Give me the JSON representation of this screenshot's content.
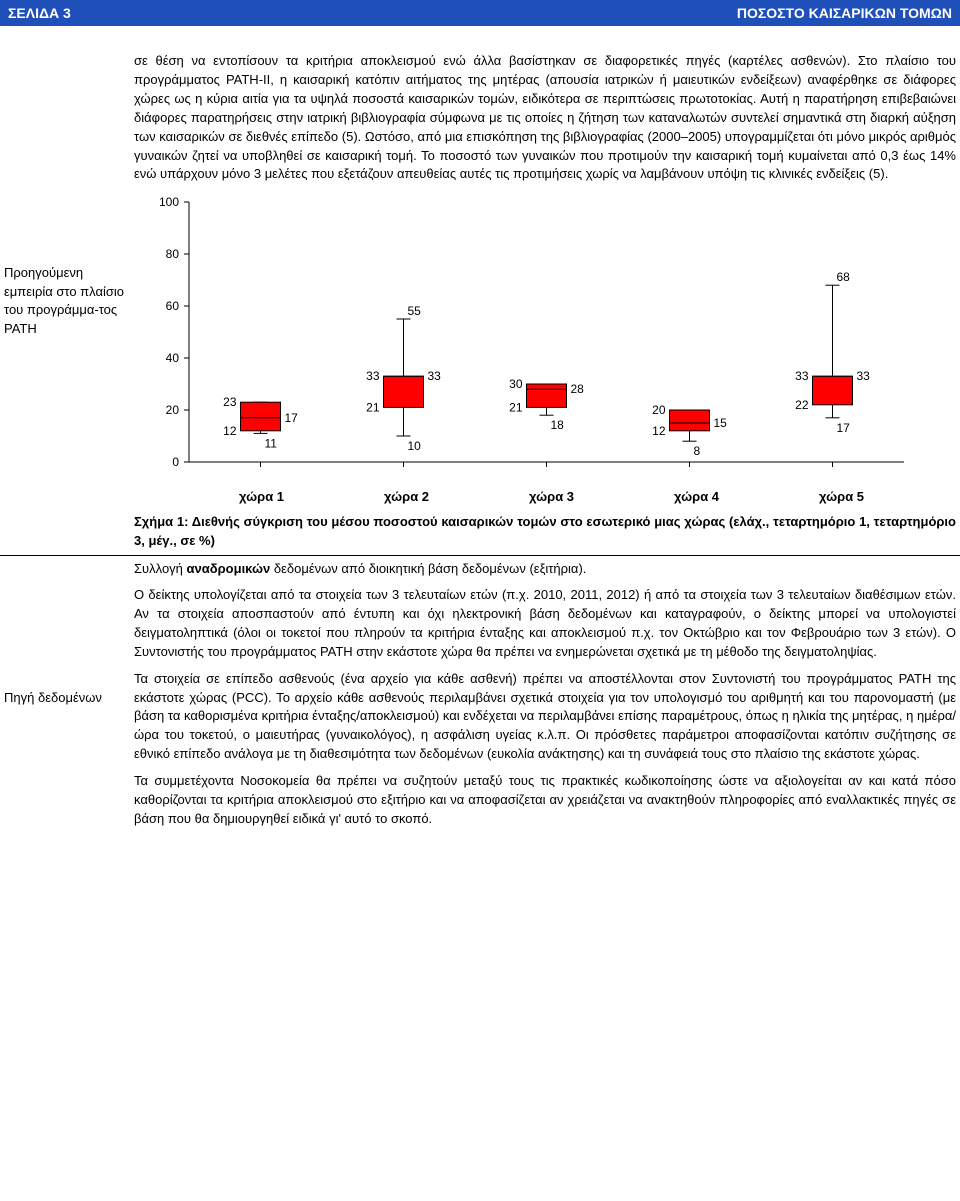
{
  "header": {
    "left": "ΣΕΛΙΔΑ 3",
    "right": "ΠΟΣΟΣΤΟ ΚΑΙΣΑΡΙΚΩΝ ΤΟΜΩΝ"
  },
  "row1": {
    "label": "Προηγούμενη εμπειρία στο πλαίσιο του προγράμμα-τος PATH",
    "text": "σε θέση να εντοπίσουν τα κριτήρια αποκλεισμού ενώ άλλα βασίστηκαν σε διαφορετικές πηγές (καρτέλες ασθενών). Στο πλαίσιο του προγράμματος PATH-II, η καισαρική κατόπιν αιτήματος της μητέρας (απουσία ιατρικών ή μαιευτικών ενδείξεων) αναφέρθηκε σε διάφορες χώρες ως η κύρια αιτία για τα υψηλά ποσοστά καισαρικών τομών, ειδικότερα σε περιπτώσεις πρωτοτοκίας. Αυτή η παρατήρηση επιβεβαιώνει διάφορες παρατηρήσεις στην ιατρική βιβλιογραφία σύμφωνα με τις οποίες η ζήτηση των καταναλωτών συντελεί σημαντικά στη διαρκή αύξηση των καισαρικών σε διεθνές επίπεδο (5). Ωστόσο, από μια επισκόπηση της βιβλιογραφίας (2000–2005) υπογραμμίζεται ότι μόνο μικρός αριθμός γυναικών ζητεί να υποβληθεί σε καισαρική τομή. Το ποσοστό των γυναικών που προτιμούν την καισαρική τομή κυμαίνεται από 0,3 έως 14% ενώ υπάρχουν μόνο 3 μελέτες που εξετάζουν απευθείας αυτές τις προτιμήσεις χωρίς να λαμβάνουν υπόψη τις κλινικές ενδείξεις (5)."
  },
  "chart": {
    "type": "boxplot",
    "background_color": "#ffffff",
    "axis_color": "#000000",
    "box_fill": "#ff0000",
    "box_stroke": "#000000",
    "whisker_color": "#000000",
    "label_fontsize": 12,
    "ylim": [
      0,
      100
    ],
    "yticks": [
      0,
      20,
      40,
      60,
      80,
      100
    ],
    "categories": [
      "χώρα 1",
      "χώρα 2",
      "χώρα 3",
      "χώρα 4",
      "χώρα 5"
    ],
    "data": [
      {
        "min": 11,
        "q1": 12,
        "median": 17,
        "q3": 23,
        "max": 23
      },
      {
        "min": 10,
        "q1": 21,
        "median": 33,
        "q3": 33,
        "max": 55
      },
      {
        "min": 18,
        "q1": 21,
        "median": 28,
        "q3": 30,
        "max": 30
      },
      {
        "min": 8,
        "q1": 12,
        "median": 15,
        "q3": 20,
        "max": 20
      },
      {
        "min": 17,
        "q1": 22,
        "median": 33,
        "q3": 33,
        "max": 68
      }
    ],
    "caption": "Σχήμα 1: Διεθνής σύγκριση του μέσου ποσοστού καισαρικών τομών στο εσωτερικό μιας χώρας (ελάχ., τεταρτημόριο 1, τεταρτημόριο 3, μέγ., σε %)"
  },
  "row2": {
    "label": "Πηγή δεδομένων",
    "p1_lead": "Συλλογή",
    "p1_bold": " αναδρομικών",
    "p1_rest": " δεδομένων από διοικητική βάση δεδομένων (εξιτήρια).",
    "p2": "Ο δείκτης υπολογίζεται από τα στοιχεία των 3 τελευταίων ετών (π.χ. 2010, 2011, 2012) ή από τα στοιχεία των 3 τελευταίων διαθέσιμων ετών. Αν τα στοιχεία αποσπαστούν από έντυπη και όχι ηλεκτρονική βάση δεδομένων και καταγραφούν, ο δείκτης μπορεί να υπολογιστεί δειγματοληπτικά (όλοι οι τοκετοί που πληρούν τα κριτήρια ένταξης και αποκλεισμού π.χ. τον Οκτώβριο και τον Φεβρουάριο των 3 ετών). Ο Συντονιστής του προγράμματος PATH στην εκάστοτε χώρα θα πρέπει να ενημερώνεται σχετικά με τη μέθοδο της δειγματοληψίας.",
    "p3": "Τα στοιχεία σε επίπεδο ασθενούς (ένα αρχείο για κάθε ασθενή) πρέπει να αποστέλλονται στον Συντονιστή του προγράμματος PATH της εκάστοτε χώρας (PCC). Το αρχείο κάθε ασθενούς περιλαμβάνει σχετικά στοιχεία για τον υπολογισμό του αριθμητή και του παρονομαστή (με βάση τα καθορισμένα κριτήρια ένταξης/αποκλεισμού) και ενδέχεται να περιλαμβάνει επίσης παραμέτρους, όπως η ηλικία της μητέρας, η ημέρα/ώρα του τοκετού, ο μαιευτήρας (γυναικολόγος), η ασφάλιση υγείας κ.λ.π. Οι πρόσθετες παράμετροι αποφασίζονται κατόπιν συζήτησης σε εθνικό επίπεδο ανάλογα με τη διαθεσιμότητα των δεδομένων (ευκολία ανάκτησης) και τη συνάφειά τους στο πλαίσιο της εκάστοτε χώρας.",
    "p4": "Τα συμμετέχοντα Νοσοκομεία θα πρέπει να συζητούν μεταξύ τους τις πρακτικές κωδικοποίησης ώστε να αξιολογείται αν και κατά πόσο καθορίζονται τα κριτήρια αποκλεισμού στο εξιτήριο και να αποφασίζεται αν χρειάζεται να ανακτηθούν πληροφορίες από εναλλακτικές πηγές σε βάση που θα δημιουργηθεί ειδικά γι' αυτό το σκοπό."
  }
}
